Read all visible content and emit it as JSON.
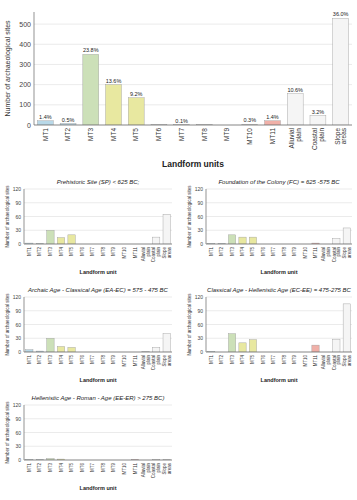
{
  "chart_data": [
    {
      "type": "bar",
      "categories": [
        "MT1",
        "MT2",
        "MT3",
        "MT4",
        "MT5",
        "MT6",
        "MT7",
        "MT8",
        "MT9",
        "MT10",
        "MT11",
        "Alluvial\nplain",
        "Coastal\nplain",
        "Slope\nareas"
      ],
      "values": [
        21,
        7,
        350,
        200,
        135,
        1,
        1,
        2,
        0,
        4,
        21,
        155,
        47,
        528
      ],
      "colors": [
        "#b8d8e8",
        "#b8d8e8",
        "#cce0b8",
        "#e8e8a0",
        "#e8e8a0",
        "#e8e8e8",
        "#e8e8e8",
        "#e8e8e8",
        "#e8e8e8",
        "#e8e8e8",
        "#f0b0a8",
        "#f5f5f5",
        "#f5f5f5",
        "#f5f5f5"
      ],
      "annotations": [
        "1.4%",
        "0.5%",
        "23.8%",
        "13.6%",
        "9.2%",
        null,
        "0.1%",
        null,
        null,
        "0.3%",
        "1.4%",
        "10.6%",
        "3.2%",
        "36.0%"
      ],
      "ylabel": "Number of archaeological sites",
      "xlabel": "Landform units",
      "ylim": [
        0,
        560
      ],
      "yticks": [
        0,
        100,
        200,
        300,
        400,
        500
      ],
      "grid": true
    },
    {
      "type": "bar",
      "title": "Prehistoric Site (SP) < 625 BC;",
      "categories": [
        "MT1",
        "MT2",
        "MT3",
        "MT4",
        "MT5",
        "MT6",
        "MT7",
        "MT8",
        "MT9",
        "MT10",
        "MT11",
        "Alluvial\nplain",
        "Coastal\nplain",
        "Slope\nareas"
      ],
      "values": [
        2,
        1,
        30,
        14,
        20,
        0,
        0,
        0,
        0,
        0,
        0,
        0,
        15,
        65
      ],
      "colors": [
        "#b8d8e8",
        "#b8d8e8",
        "#cce0b8",
        "#e8e8a0",
        "#e8e8a0",
        "#e8e8e8",
        "#e8e8e8",
        "#e8e8e8",
        "#e8e8e8",
        "#e8e8e8",
        "#f0b0a8",
        "#f5f5f5",
        "#f5f5f5",
        "#f5f5f5"
      ],
      "ylabel": "Number of archaeological sites",
      "xlabel": "Landform unit",
      "ylim": [
        0,
        120
      ],
      "yticks": [
        0,
        30,
        60,
        90,
        120
      ],
      "grid": true
    },
    {
      "type": "bar",
      "title": "Foundation of the Colony (FC) = 625 -575 BC",
      "categories": [
        "MT1",
        "MT2",
        "MT3",
        "MT4",
        "MT5",
        "MT6",
        "MT7",
        "MT8",
        "MT9",
        "MT10",
        "MT11",
        "Alluvial\nplain",
        "Coastal\nplain",
        "Slope\nareas"
      ],
      "values": [
        1,
        1,
        20,
        15,
        15,
        0,
        0,
        0,
        0,
        0,
        2,
        0,
        12,
        35
      ],
      "colors": [
        "#b8d8e8",
        "#b8d8e8",
        "#cce0b8",
        "#e8e8a0",
        "#e8e8a0",
        "#e8e8e8",
        "#e8e8e8",
        "#e8e8e8",
        "#e8e8e8",
        "#e8e8e8",
        "#f0b0a8",
        "#f5f5f5",
        "#f5f5f5",
        "#f5f5f5"
      ],
      "ylabel": "Number of archaeological sites",
      "xlabel": "Landform unit",
      "ylim": [
        0,
        120
      ],
      "yticks": [
        0,
        30,
        60,
        90,
        120
      ],
      "grid": true
    },
    {
      "type": "bar",
      "title": "Archaic Age - Classical Age (EA-EC) = 575 - 475 BC",
      "categories": [
        "MT1",
        "MT2",
        "MT3",
        "MT4",
        "MT5",
        "MT6",
        "MT7",
        "MT8",
        "MT9",
        "MT10",
        "MT11",
        "Alluvial\nplain",
        "Coastal\nplain",
        "Slope\nareas"
      ],
      "values": [
        5,
        2,
        30,
        12,
        10,
        0,
        0,
        0,
        0,
        0,
        0,
        1,
        10,
        40
      ],
      "colors": [
        "#b8d8e8",
        "#b8d8e8",
        "#cce0b8",
        "#e8e8a0",
        "#e8e8a0",
        "#e8e8e8",
        "#e8e8e8",
        "#e8e8e8",
        "#e8e8e8",
        "#e8e8e8",
        "#f0b0a8",
        "#f5f5f5",
        "#f5f5f5",
        "#f5f5f5"
      ],
      "ylabel": "Number of archaeological sites",
      "xlabel": "Landform unit",
      "ylim": [
        0,
        120
      ],
      "yticks": [
        0,
        30,
        60,
        90,
        120
      ],
      "grid": true
    },
    {
      "type": "bar",
      "title": "Classical Age - Hellenistic Age (EC-EE) = 475-275 BC",
      "categories": [
        "MT1",
        "MT2",
        "MT3",
        "MT4",
        "MT5",
        "MT6",
        "MT7",
        "MT8",
        "MT9",
        "MT10",
        "MT11",
        "Alluvial\nplain",
        "Coastal\nplain",
        "Slope\nareas"
      ],
      "values": [
        1,
        0,
        40,
        20,
        27,
        0,
        0,
        0,
        0,
        0,
        15,
        0,
        28,
        105
      ],
      "colors": [
        "#b8d8e8",
        "#b8d8e8",
        "#cce0b8",
        "#e8e8a0",
        "#e8e8a0",
        "#e8e8e8",
        "#e8e8e8",
        "#e8e8e8",
        "#e8e8e8",
        "#e8e8e8",
        "#f0b0a8",
        "#f5f5f5",
        "#f5f5f5",
        "#f5f5f5"
      ],
      "ylabel": "Number of archaeological sites",
      "xlabel": "Landform unit",
      "ylim": [
        0,
        120
      ],
      "yticks": [
        0,
        30,
        60,
        90,
        120
      ],
      "grid": true
    },
    {
      "type": "bar",
      "title": "Hellenistic Age - Roman - Age (EE-ER) > 275 BC)",
      "categories": [
        "MT1",
        "MT2",
        "MT3",
        "MT4",
        "MT5",
        "MT6",
        "MT7",
        "MT8",
        "MT9",
        "MT10",
        "MT11",
        "Alluvial\nplain",
        "Coastal\nplain",
        "Slope\nareas"
      ],
      "values": [
        1,
        1,
        3,
        2,
        0,
        0,
        0,
        0,
        0,
        0,
        1,
        0,
        1,
        1
      ],
      "colors": [
        "#b8d8e8",
        "#b8d8e8",
        "#cce0b8",
        "#e8e8a0",
        "#e8e8a0",
        "#e8e8e8",
        "#e8e8e8",
        "#e8e8e8",
        "#e8e8e8",
        "#e8e8e8",
        "#f0b0a8",
        "#f5f5f5",
        "#f5f5f5",
        "#f5f5f5"
      ],
      "ylabel": "Number of archaeological sites",
      "xlabel": "Landform unit",
      "ylim": [
        0,
        120
      ],
      "yticks": [
        0,
        30,
        60,
        90,
        120
      ],
      "grid": true
    }
  ]
}
